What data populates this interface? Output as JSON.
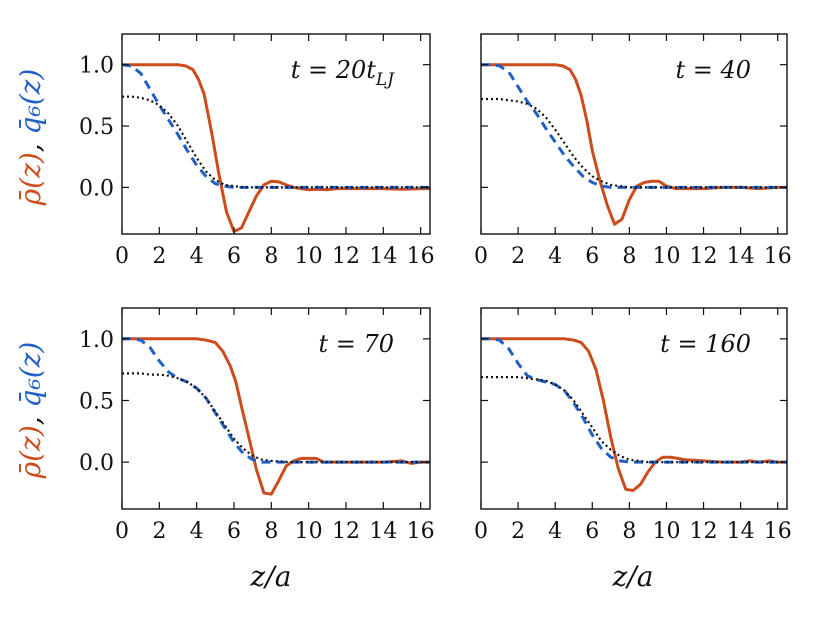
{
  "figure": {
    "ylabel_rho": "ρ̄(z)",
    "ylabel_sep": ", ",
    "ylabel_q6": "q̄₆(z)",
    "xlabel": "z/a",
    "colors": {
      "rho": "#cc4c1c",
      "q6": "#1f5fc6",
      "fit": "#111111"
    }
  },
  "chart_data": [
    {
      "type": "line",
      "title": "t = 20t_LJ",
      "xlabel": "",
      "ylabel": "ρ̄(z), q̄₆(z)",
      "xlim": [
        0,
        16.5
      ],
      "ylim": [
        -0.38,
        1.25
      ],
      "xticks": [
        "0",
        "2",
        "4",
        "6",
        "8",
        "10",
        "12",
        "14",
        "16"
      ],
      "yticks": [
        "0.0",
        "0.5",
        "1.0"
      ],
      "series": [
        {
          "name": "rho",
          "style": "solid",
          "x": [
            0,
            1,
            2,
            3,
            3.4,
            3.8,
            4.1,
            4.4,
            4.8,
            5.2,
            5.6,
            6.0,
            6.4,
            6.8,
            7.2,
            7.6,
            8.0,
            8.4,
            8.8,
            9.2,
            9.6,
            10,
            10.5,
            11,
            11.5,
            12,
            13,
            14,
            15,
            16,
            16.5
          ],
          "y": [
            1.0,
            1.0,
            1.0,
            1.0,
            0.99,
            0.96,
            0.88,
            0.76,
            0.45,
            0.1,
            -0.2,
            -0.36,
            -0.33,
            -0.2,
            -0.07,
            0.02,
            0.05,
            0.045,
            0.02,
            0.0,
            -0.01,
            -0.02,
            -0.015,
            -0.02,
            -0.01,
            -0.01,
            -0.01,
            -0.01,
            -0.015,
            -0.01,
            -0.01
          ]
        },
        {
          "name": "q6",
          "style": "dashed",
          "x": [
            0,
            0.5,
            1,
            1.5,
            2,
            2.5,
            3,
            3.5,
            4,
            4.5,
            5,
            5.5,
            6,
            6.5,
            7,
            8,
            9,
            10,
            11,
            12,
            13,
            14,
            15,
            16,
            16.5
          ],
          "y": [
            1.0,
            0.99,
            0.93,
            0.8,
            0.67,
            0.55,
            0.43,
            0.3,
            0.18,
            0.09,
            0.03,
            0.01,
            0.0,
            0.0,
            0.0,
            0.0,
            0.0,
            0.0,
            0.0,
            0.0,
            0.0,
            0.0,
            0.0,
            0.0,
            0.0
          ]
        },
        {
          "name": "fit",
          "style": "dotted",
          "x": [
            0,
            0.5,
            1,
            1.5,
            2,
            2.5,
            3,
            3.5,
            4,
            4.5,
            5,
            5.5,
            6,
            6.5,
            7,
            8,
            9,
            10,
            12,
            14,
            16,
            16.5
          ],
          "y": [
            0.74,
            0.74,
            0.73,
            0.71,
            0.67,
            0.6,
            0.5,
            0.37,
            0.24,
            0.13,
            0.06,
            0.02,
            0.01,
            0.0,
            0.0,
            0.0,
            0.0,
            0.0,
            0.0,
            0.0,
            0.0,
            0.0
          ]
        }
      ]
    },
    {
      "type": "line",
      "title": "t = 40",
      "xlabel": "",
      "ylabel": "",
      "xlim": [
        0,
        16.5
      ],
      "ylim": [
        -0.38,
        1.25
      ],
      "xticks": [
        "0",
        "2",
        "4",
        "6",
        "8",
        "10",
        "12",
        "14",
        "16"
      ],
      "yticks": [
        "0.0",
        "0.5",
        "1.0"
      ],
      "series": [
        {
          "name": "rho",
          "style": "solid",
          "x": [
            0,
            1,
            2,
            3,
            4,
            4.4,
            4.8,
            5.1,
            5.4,
            5.7,
            6.0,
            6.4,
            6.8,
            7.2,
            7.6,
            8.0,
            8.4,
            8.8,
            9.2,
            9.6,
            10,
            10.5,
            11,
            11.5,
            12,
            13,
            14,
            15,
            16,
            16.5
          ],
          "y": [
            1.0,
            1.0,
            1.0,
            1.0,
            1.0,
            0.99,
            0.96,
            0.88,
            0.75,
            0.55,
            0.3,
            0.06,
            -0.14,
            -0.3,
            -0.26,
            -0.1,
            0.01,
            0.04,
            0.05,
            0.05,
            0.01,
            -0.01,
            -0.01,
            -0.01,
            -0.01,
            0.0,
            0.0,
            -0.01,
            0.0,
            0.0
          ]
        },
        {
          "name": "q6",
          "style": "dashed",
          "x": [
            0,
            0.5,
            1,
            1.5,
            2,
            2.5,
            3,
            3.5,
            4,
            4.5,
            5,
            5.5,
            6,
            6.5,
            7,
            7.5,
            8,
            9,
            10,
            11,
            12,
            13,
            14,
            15,
            16,
            16.5
          ],
          "y": [
            1.0,
            1.0,
            0.99,
            0.94,
            0.82,
            0.7,
            0.6,
            0.48,
            0.37,
            0.26,
            0.17,
            0.09,
            0.04,
            0.01,
            0.0,
            0.0,
            0.0,
            0.0,
            0.0,
            0.0,
            0.0,
            0.0,
            0.0,
            0.0,
            0.0,
            0.0
          ]
        },
        {
          "name": "fit",
          "style": "dotted",
          "x": [
            0,
            0.5,
            1,
            1.5,
            2,
            2.5,
            3,
            3.5,
            4,
            4.5,
            5,
            5.5,
            6,
            6.5,
            7,
            7.5,
            8,
            9,
            10,
            12,
            14,
            16,
            16.5
          ],
          "y": [
            0.72,
            0.72,
            0.72,
            0.71,
            0.7,
            0.68,
            0.64,
            0.57,
            0.47,
            0.36,
            0.25,
            0.16,
            0.09,
            0.05,
            0.02,
            0.01,
            0.0,
            0.0,
            0.0,
            0.0,
            0.0,
            0.0,
            0.0
          ]
        }
      ]
    },
    {
      "type": "line",
      "title": "t = 70",
      "xlabel": "z/a",
      "ylabel": "ρ̄(z), q̄₆(z)",
      "xlim": [
        0,
        16.5
      ],
      "ylim": [
        -0.38,
        1.25
      ],
      "xticks": [
        "0",
        "2",
        "4",
        "6",
        "8",
        "10",
        "12",
        "14",
        "16"
      ],
      "yticks": [
        "0.0",
        "0.5",
        "1.0"
      ],
      "series": [
        {
          "name": "rho",
          "style": "solid",
          "x": [
            0,
            1,
            2,
            3,
            4,
            4.5,
            5.0,
            5.4,
            5.8,
            6.1,
            6.4,
            6.8,
            7.2,
            7.6,
            8.0,
            8.4,
            8.8,
            9.2,
            9.6,
            10.0,
            10.4,
            10.8,
            11,
            12,
            13,
            14,
            15,
            15.5,
            16,
            16.5
          ],
          "y": [
            1.0,
            1.0,
            1.0,
            1.0,
            1.0,
            0.99,
            0.97,
            0.9,
            0.78,
            0.65,
            0.45,
            0.2,
            -0.06,
            -0.25,
            -0.26,
            -0.15,
            -0.03,
            0.01,
            0.03,
            0.03,
            0.03,
            0.0,
            0.0,
            0.0,
            0.0,
            0.0,
            0.01,
            -0.01,
            0.0,
            0.0
          ]
        },
        {
          "name": "q6",
          "style": "dashed",
          "x": [
            0,
            0.5,
            1,
            1.5,
            2,
            2.5,
            3,
            3.5,
            4,
            4.5,
            5,
            5.5,
            6,
            6.5,
            7,
            7.5,
            8,
            9,
            10,
            11,
            12,
            13,
            14,
            15,
            16,
            16.5
          ],
          "y": [
            1.0,
            1.0,
            0.99,
            0.93,
            0.82,
            0.73,
            0.68,
            0.65,
            0.6,
            0.52,
            0.4,
            0.28,
            0.16,
            0.07,
            0.02,
            0.0,
            0.0,
            0.0,
            0.0,
            0.0,
            0.0,
            0.0,
            0.0,
            0.0,
            0.0,
            0.0
          ]
        },
        {
          "name": "fit",
          "style": "dotted",
          "x": [
            0,
            0.5,
            1,
            1.5,
            2,
            2.5,
            3,
            3.5,
            4,
            4.5,
            5,
            5.5,
            6,
            6.5,
            7,
            7.5,
            8,
            9,
            10,
            12,
            14,
            16,
            16.5
          ],
          "y": [
            0.72,
            0.72,
            0.72,
            0.71,
            0.71,
            0.7,
            0.68,
            0.65,
            0.6,
            0.52,
            0.41,
            0.3,
            0.19,
            0.11,
            0.05,
            0.02,
            0.01,
            0.0,
            0.0,
            0.0,
            0.0,
            0.0,
            0.0
          ]
        }
      ]
    },
    {
      "type": "line",
      "title": "t = 160",
      "xlabel": "z/a",
      "ylabel": "",
      "xlim": [
        0,
        16.5
      ],
      "ylim": [
        -0.38,
        1.25
      ],
      "xticks": [
        "0",
        "2",
        "4",
        "6",
        "8",
        "10",
        "12",
        "14",
        "16"
      ],
      "yticks": [
        "0.0",
        "0.5",
        "1.0"
      ],
      "series": [
        {
          "name": "rho",
          "style": "solid",
          "x": [
            0,
            1,
            2,
            3,
            4,
            4.5,
            5.0,
            5.4,
            5.8,
            6.2,
            6.6,
            7.0,
            7.4,
            7.8,
            8.2,
            8.6,
            9.0,
            9.4,
            9.8,
            10.2,
            10.6,
            11,
            12,
            13,
            14,
            14.5,
            15,
            15.5,
            16,
            16.5
          ],
          "y": [
            1.0,
            1.0,
            1.0,
            1.0,
            1.0,
            1.0,
            0.99,
            0.97,
            0.9,
            0.75,
            0.5,
            0.2,
            -0.05,
            -0.22,
            -0.23,
            -0.18,
            -0.08,
            0.0,
            0.04,
            0.04,
            0.03,
            0.02,
            0.01,
            0.0,
            0.0,
            0.01,
            0.0,
            0.01,
            0.0,
            0.0
          ]
        },
        {
          "name": "q6",
          "style": "dashed",
          "x": [
            0,
            0.5,
            1,
            1.5,
            2,
            2.5,
            3,
            3.5,
            4,
            4.5,
            5,
            5.5,
            6,
            6.5,
            7,
            7.5,
            8,
            9,
            10,
            11,
            12,
            13,
            14,
            15,
            16,
            16.5
          ],
          "y": [
            1.0,
            1.0,
            0.99,
            0.92,
            0.8,
            0.7,
            0.67,
            0.65,
            0.63,
            0.58,
            0.48,
            0.36,
            0.22,
            0.11,
            0.04,
            0.01,
            0.0,
            0.0,
            0.0,
            0.0,
            0.0,
            0.0,
            0.0,
            0.0,
            0.0,
            0.0
          ]
        },
        {
          "name": "fit",
          "style": "dotted",
          "x": [
            0,
            0.5,
            1,
            1.5,
            2,
            2.5,
            3,
            3.5,
            4,
            4.5,
            5,
            5.5,
            6,
            6.5,
            7,
            7.5,
            8,
            8.5,
            9,
            10,
            12,
            14,
            16,
            16.5
          ],
          "y": [
            0.69,
            0.69,
            0.69,
            0.69,
            0.69,
            0.68,
            0.67,
            0.66,
            0.63,
            0.58,
            0.5,
            0.39,
            0.28,
            0.17,
            0.1,
            0.05,
            0.02,
            0.01,
            0.0,
            0.0,
            0.0,
            0.0,
            0.0,
            0.0
          ]
        }
      ]
    }
  ]
}
